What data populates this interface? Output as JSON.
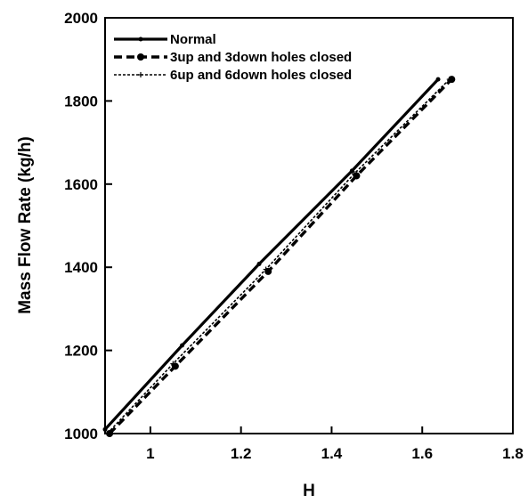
{
  "chart_data": {
    "type": "line",
    "title": "",
    "xlabel": "H",
    "ylabel": "Mass Flow Rate (kg/h)",
    "xlim": [
      0.9,
      1.8
    ],
    "ylim": [
      1000,
      2000
    ],
    "x_ticks": [
      "1",
      "1.2",
      "1.4",
      "1.6",
      "1.8"
    ],
    "y_ticks": [
      "1000",
      "1200",
      "1400",
      "1600",
      "1800",
      "2000"
    ],
    "grid": false,
    "legend_position": "top-left",
    "series": [
      {
        "name": "Normal",
        "style": "solid",
        "color": "#000000",
        "x": [
          0.9,
          1.07,
          1.24,
          1.445,
          1.635
        ],
        "y": [
          1010,
          1212,
          1408,
          1632,
          1852
        ]
      },
      {
        "name": "3up and 3down holes closed",
        "style": "dashed",
        "color": "#000000",
        "x": [
          0.91,
          1.055,
          1.26,
          1.455,
          1.665
        ],
        "y": [
          1000,
          1162,
          1390,
          1620,
          1852
        ]
      },
      {
        "name": "6up and 6down holes closed",
        "style": "dotted",
        "color": "#000000",
        "x": [
          0.905,
          1.05,
          1.255,
          1.45,
          1.66
        ],
        "y": [
          1000,
          1168,
          1395,
          1625,
          1852
        ]
      }
    ]
  }
}
